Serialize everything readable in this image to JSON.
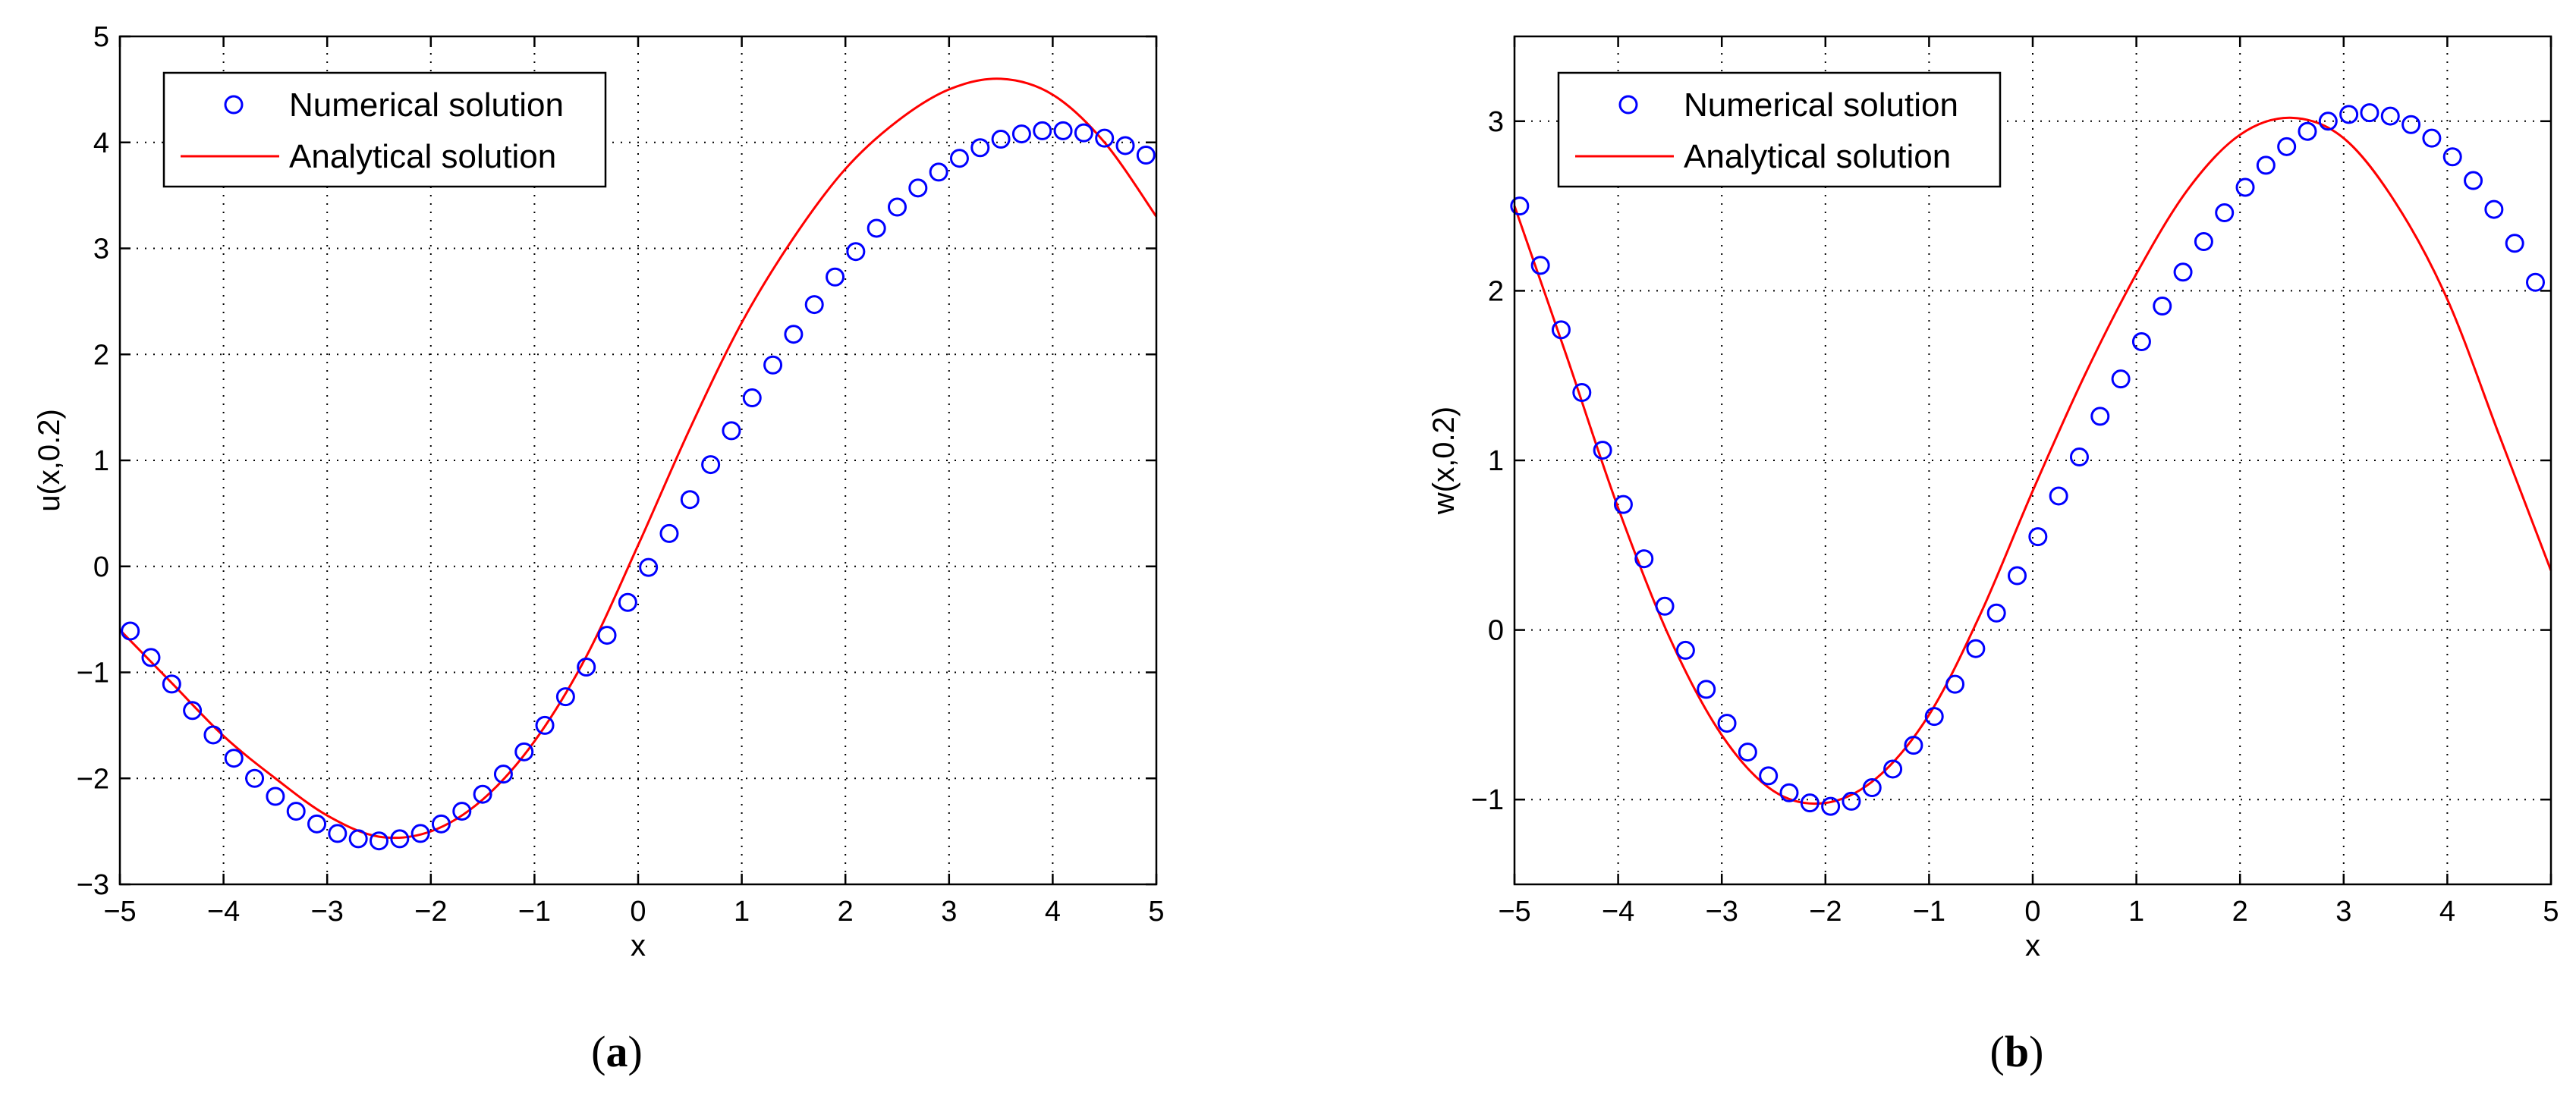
{
  "chart_data": [
    {
      "type": "line",
      "panel_label": "a",
      "xlabel": "x",
      "ylabel": "u(x,0.2)",
      "xlim": [
        -5,
        5
      ],
      "ylim": [
        -3,
        5
      ],
      "xticks": [
        "−5",
        "−4",
        "−3",
        "−2",
        "−1",
        "0",
        "1",
        "2",
        "3",
        "4",
        "5"
      ],
      "yticks": [
        "−3",
        "−2",
        "−1",
        "0",
        "1",
        "2",
        "3",
        "4",
        "5"
      ],
      "grid": true,
      "legend_position": "top-left",
      "series": [
        {
          "name": "Numerical solution",
          "style": "markers",
          "color": "#0000ff",
          "x": [
            -4.9,
            -4.7,
            -4.5,
            -4.3,
            -4.1,
            -3.9,
            -3.7,
            -3.5,
            -3.3,
            -3.1,
            -2.9,
            -2.7,
            -2.5,
            -2.3,
            -2.1,
            -1.9,
            -1.7,
            -1.5,
            -1.3,
            -1.1,
            -0.9,
            -0.7,
            -0.5,
            -0.3,
            -0.1,
            0.1,
            0.3,
            0.5,
            0.7,
            0.9,
            1.1,
            1.3,
            1.5,
            1.7,
            1.9,
            2.1,
            2.3,
            2.5,
            2.7,
            2.9,
            3.1,
            3.3,
            3.5,
            3.7,
            3.9,
            4.1,
            4.3,
            4.5,
            4.7,
            4.9
          ],
          "y": [
            -0.61,
            -0.86,
            -1.11,
            -1.36,
            -1.59,
            -1.81,
            -2.0,
            -2.17,
            -2.31,
            -2.43,
            -2.52,
            -2.57,
            -2.59,
            -2.57,
            -2.52,
            -2.43,
            -2.31,
            -2.15,
            -1.96,
            -1.75,
            -1.5,
            -1.23,
            -0.95,
            -0.65,
            -0.34,
            -0.01,
            0.31,
            0.63,
            0.96,
            1.28,
            1.59,
            1.9,
            2.19,
            2.47,
            2.73,
            2.97,
            3.19,
            3.39,
            3.57,
            3.72,
            3.85,
            3.95,
            4.03,
            4.08,
            4.11,
            4.11,
            4.09,
            4.04,
            3.97,
            3.88
          ]
        },
        {
          "name": "Analytical solution",
          "style": "line",
          "color": "#ff0000",
          "x": [
            -5,
            -4.5,
            -4,
            -3.5,
            -3,
            -2.5,
            -2,
            -1.5,
            -1,
            -0.5,
            0,
            0.5,
            1,
            1.5,
            2,
            2.5,
            3,
            3.5,
            4,
            4.5,
            5
          ],
          "y": [
            -0.6,
            -1.1,
            -1.6,
            -2.0,
            -2.35,
            -2.55,
            -2.5,
            -2.2,
            -1.65,
            -0.85,
            0.2,
            1.3,
            2.3,
            3.1,
            3.75,
            4.2,
            4.5,
            4.6,
            4.45,
            4.0,
            3.3
          ]
        }
      ]
    },
    {
      "type": "line",
      "panel_label": "b",
      "xlabel": "x",
      "ylabel": "w(x,0.2)",
      "xlim": [
        -5,
        5
      ],
      "ylim": [
        -1.5,
        3.5
      ],
      "xticks": [
        "−5",
        "−4",
        "−3",
        "−2",
        "−1",
        "0",
        "1",
        "2",
        "3",
        "4",
        "5"
      ],
      "yticks": [
        "−1",
        "0",
        "1",
        "2",
        "3"
      ],
      "grid": true,
      "legend_position": "top-left",
      "series": [
        {
          "name": "Numerical solution",
          "style": "markers",
          "color": "#0000ff",
          "x": [
            -4.95,
            -4.75,
            -4.55,
            -4.35,
            -4.15,
            -3.95,
            -3.75,
            -3.55,
            -3.35,
            -3.15,
            -2.95,
            -2.75,
            -2.55,
            -2.35,
            -2.15,
            -1.95,
            -1.75,
            -1.55,
            -1.35,
            -1.15,
            -0.95,
            -0.75,
            -0.55,
            -0.35,
            -0.15,
            0.05,
            0.25,
            0.45,
            0.65,
            0.85,
            1.05,
            1.25,
            1.45,
            1.65,
            1.85,
            2.05,
            2.25,
            2.45,
            2.65,
            2.85,
            3.05,
            3.25,
            3.45,
            3.65,
            3.85,
            4.05,
            4.25,
            4.45,
            4.65,
            4.85
          ],
          "y": [
            2.5,
            2.15,
            1.77,
            1.4,
            1.06,
            0.74,
            0.42,
            0.14,
            -0.12,
            -0.35,
            -0.55,
            -0.72,
            -0.86,
            -0.96,
            -1.02,
            -1.04,
            -1.01,
            -0.93,
            -0.82,
            -0.68,
            -0.51,
            -0.32,
            -0.11,
            0.1,
            0.32,
            0.55,
            0.79,
            1.02,
            1.26,
            1.48,
            1.7,
            1.91,
            2.11,
            2.29,
            2.46,
            2.61,
            2.74,
            2.85,
            2.94,
            3.0,
            3.04,
            3.05,
            3.03,
            2.98,
            2.9,
            2.79,
            2.65,
            2.48,
            2.28,
            2.05
          ]
        },
        {
          "name": "Analytical solution",
          "style": "line",
          "color": "#ff0000",
          "x": [
            -5,
            -4.5,
            -4,
            -3.5,
            -3,
            -2.5,
            -2,
            -1.5,
            -1,
            -0.5,
            0,
            0.5,
            1,
            1.5,
            2,
            2.5,
            3,
            3.5,
            4,
            4.5,
            5
          ],
          "y": [
            2.5,
            1.62,
            0.72,
            -0.05,
            -0.62,
            -0.95,
            -1.02,
            -0.87,
            -0.5,
            0.1,
            0.82,
            1.5,
            2.1,
            2.6,
            2.92,
            3.02,
            2.9,
            2.52,
            1.95,
            1.15,
            0.35
          ]
        }
      ]
    }
  ]
}
